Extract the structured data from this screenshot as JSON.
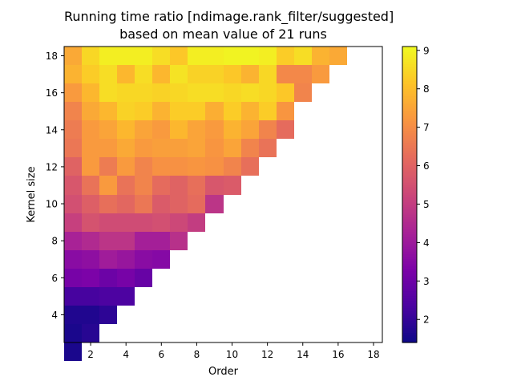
{
  "chart_data": {
    "type": "heatmap",
    "title": "Running time ratio [ndimage.rank_filter/suggested]",
    "subtitle": "based on mean value of 21 runs",
    "xlabel": "Order",
    "ylabel": "Kernel size",
    "x_range": [
      0.5,
      18.5
    ],
    "y_range": [
      2.5,
      18.5
    ],
    "x_ticks": [
      2,
      4,
      6,
      8,
      10,
      12,
      14,
      16,
      18
    ],
    "y_ticks": [
      4,
      6,
      8,
      10,
      12,
      14,
      16,
      18
    ],
    "colormap": "plasma",
    "colorbar": {
      "range": [
        1.4,
        9.1
      ],
      "ticks": [
        2,
        3,
        4,
        5,
        6,
        7,
        8,
        9
      ]
    },
    "grid": false,
    "rows": [
      {
        "kernel_size": 18,
        "values": [
          7.6,
          8.5,
          8.9,
          8.9,
          8.9,
          8.6,
          8.2,
          8.9,
          8.9,
          9.0,
          9.0,
          8.9,
          8.3,
          8.6,
          7.8,
          7.6
        ]
      },
      {
        "kernel_size": 17,
        "values": [
          7.8,
          8.3,
          8.6,
          7.9,
          8.6,
          7.9,
          8.7,
          8.4,
          8.4,
          8.2,
          7.8,
          8.5,
          6.9,
          6.9,
          7.3
        ]
      },
      {
        "kernel_size": 16,
        "values": [
          7.3,
          7.9,
          8.6,
          8.5,
          8.5,
          8.4,
          8.5,
          8.6,
          8.6,
          8.5,
          8.6,
          8.5,
          8.2,
          6.8
        ]
      },
      {
        "kernel_size": 15,
        "values": [
          6.8,
          7.6,
          7.9,
          8.4,
          8.3,
          7.8,
          8.3,
          8.3,
          7.7,
          8.3,
          7.8,
          8.3,
          7.2
        ]
      },
      {
        "kernel_size": 14,
        "values": [
          6.6,
          7.3,
          7.5,
          7.9,
          7.5,
          7.3,
          7.9,
          7.5,
          7.3,
          7.8,
          7.5,
          6.8,
          6.2
        ]
      },
      {
        "kernel_size": 13,
        "values": [
          6.5,
          7.3,
          7.3,
          7.6,
          7.3,
          7.4,
          7.4,
          7.5,
          7.2,
          7.5,
          6.8,
          6.4
        ]
      },
      {
        "kernel_size": 12,
        "values": [
          6.0,
          7.3,
          6.6,
          7.3,
          6.8,
          7.1,
          7.1,
          7.2,
          7.1,
          6.8,
          6.3
        ]
      },
      {
        "kernel_size": 11,
        "values": [
          5.7,
          6.4,
          7.3,
          6.4,
          6.8,
          6.2,
          6.0,
          6.3,
          5.7,
          5.8
        ]
      },
      {
        "kernel_size": 10,
        "values": [
          5.5,
          5.9,
          6.3,
          6.1,
          6.5,
          5.8,
          6.0,
          6.2,
          4.8
        ]
      },
      {
        "kernel_size": 9,
        "values": [
          5.1,
          5.6,
          5.4,
          5.4,
          5.4,
          5.5,
          5.3,
          5.0
        ]
      },
      {
        "kernel_size": 8,
        "values": [
          4.3,
          4.5,
          4.8,
          4.8,
          4.2,
          4.2,
          4.7
        ]
      },
      {
        "kernel_size": 7,
        "values": [
          3.6,
          3.7,
          4.1,
          3.9,
          3.6,
          3.5
        ]
      },
      {
        "kernel_size": 6,
        "values": [
          3.2,
          3.3,
          3.0,
          3.2,
          2.9
        ]
      },
      {
        "kernel_size": 5,
        "values": [
          2.3,
          2.3,
          2.4,
          2.4
        ]
      },
      {
        "kernel_size": 4,
        "values": [
          1.7,
          1.7,
          1.9
        ]
      },
      {
        "kernel_size": 3,
        "values": [
          1.6,
          1.8
        ]
      },
      {
        "kernel_size": 2,
        "values": [
          1.6
        ]
      }
    ]
  }
}
